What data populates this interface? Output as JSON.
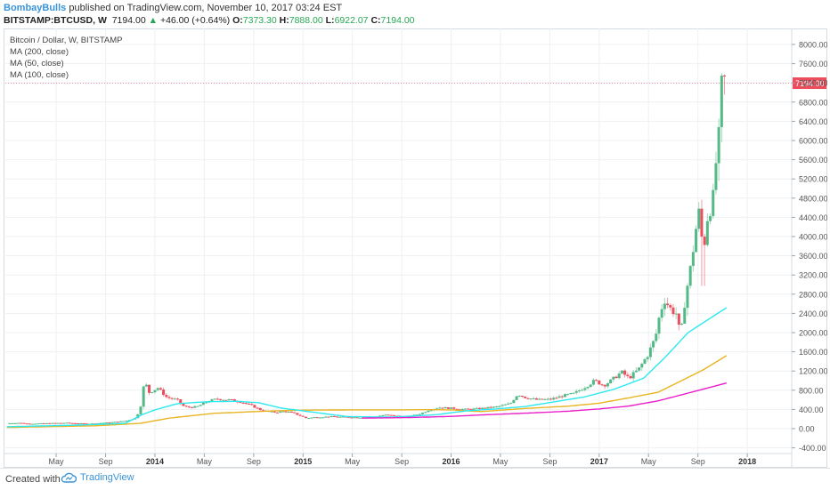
{
  "header": {
    "author": "BombayBulls",
    "published_text": "published on TradingView.com, November 10, 2017 03:24 EST",
    "symbol": "BITSTAMP:BTCUSD, W",
    "last": "7194.00",
    "change_arrow": "▲",
    "change": "+46.00 (+0.64%)",
    "o_label": "O:",
    "o_value": "7373.30",
    "h_label": "H:",
    "h_value": "7888.00",
    "l_label": "L:",
    "l_value": "6922.07",
    "c_label": "C:",
    "c_value": "7194.00"
  },
  "footer": {
    "created_text": "Created with",
    "brand": "TradingView"
  },
  "chart_data": {
    "type": "candlestick",
    "legend": [
      "Bitcoin / Dollar, W, BITSTAMP",
      "MA (200, close)",
      "MA (50, close)",
      "MA (100, close)"
    ],
    "price_label": "7194.00",
    "price_line_value": 7194,
    "ylim": [
      -400,
      8200
    ],
    "y_ticks": [
      "8000.00",
      "7600.00",
      "7200.00",
      "6800.00",
      "6400.00",
      "6000.00",
      "5600.00",
      "5200.00",
      "4800.00",
      "4400.00",
      "4000.00",
      "3600.00",
      "3200.00",
      "2800.00",
      "2400.00",
      "2000.00",
      "1600.00",
      "1200.00",
      "800.00",
      "400.00",
      "0.00",
      "-400.00"
    ],
    "x_labels": [
      {
        "t": 2013.333,
        "label": "May"
      },
      {
        "t": 2013.667,
        "label": "Sep"
      },
      {
        "t": 2014.0,
        "label": "2014"
      },
      {
        "t": 2014.333,
        "label": "May"
      },
      {
        "t": 2014.667,
        "label": "Sep"
      },
      {
        "t": 2015.0,
        "label": "2015"
      },
      {
        "t": 2015.333,
        "label": "May"
      },
      {
        "t": 2015.667,
        "label": "Sep"
      },
      {
        "t": 2016.0,
        "label": "2016"
      },
      {
        "t": 2016.333,
        "label": "May"
      },
      {
        "t": 2016.667,
        "label": "Sep"
      },
      {
        "t": 2017.0,
        "label": "2017"
      },
      {
        "t": 2017.333,
        "label": "May"
      },
      {
        "t": 2017.667,
        "label": "Sep"
      },
      {
        "t": 2018.0,
        "label": "2018"
      }
    ],
    "xlim": [
      2012.99,
      2018.3
    ],
    "colors": {
      "up": "#53b987",
      "down": "#eb4d5c",
      "ma200": "#e91ec9",
      "ma50": "#2ee8f0",
      "ma100": "#e8b422",
      "price_line": "#eb4d5c",
      "grid": "#eef0f3"
    },
    "price_anchors": [
      [
        2013.0,
        110
      ],
      [
        2013.08,
        120
      ],
      [
        2013.15,
        100
      ],
      [
        2013.25,
        110
      ],
      [
        2013.4,
        120
      ],
      [
        2013.55,
        100
      ],
      [
        2013.7,
        130
      ],
      [
        2013.8,
        160
      ],
      [
        2013.87,
        220
      ],
      [
        2013.9,
        400
      ],
      [
        2013.93,
        1000
      ],
      [
        2013.96,
        750
      ],
      [
        2014.02,
        850
      ],
      [
        2014.08,
        650
      ],
      [
        2014.15,
        600
      ],
      [
        2014.2,
        450
      ],
      [
        2014.28,
        450
      ],
      [
        2014.35,
        560
      ],
      [
        2014.42,
        620
      ],
      [
        2014.5,
        600
      ],
      [
        2014.58,
        560
      ],
      [
        2014.66,
        470
      ],
      [
        2014.72,
        380
      ],
      [
        2014.8,
        340
      ],
      [
        2014.88,
        360
      ],
      [
        2014.94,
        320
      ],
      [
        2015.02,
        220
      ],
      [
        2015.1,
        240
      ],
      [
        2015.2,
        250
      ],
      [
        2015.33,
        235
      ],
      [
        2015.45,
        230
      ],
      [
        2015.55,
        285
      ],
      [
        2015.62,
        270
      ],
      [
        2015.7,
        235
      ],
      [
        2015.8,
        320
      ],
      [
        2015.85,
        390
      ],
      [
        2015.92,
        440
      ],
      [
        2016.02,
        420
      ],
      [
        2016.1,
        400
      ],
      [
        2016.2,
        420
      ],
      [
        2016.3,
        450
      ],
      [
        2016.4,
        520
      ],
      [
        2016.45,
        720
      ],
      [
        2016.5,
        650
      ],
      [
        2016.58,
        600
      ],
      [
        2016.67,
        610
      ],
      [
        2016.75,
        680
      ],
      [
        2016.83,
        730
      ],
      [
        2016.92,
        900
      ],
      [
        2016.97,
        1000
      ],
      [
        2017.03,
        900
      ],
      [
        2017.08,
        1000
      ],
      [
        2017.15,
        1180
      ],
      [
        2017.2,
        1050
      ],
      [
        2017.27,
        1250
      ],
      [
        2017.33,
        1550
      ],
      [
        2017.38,
        1900
      ],
      [
        2017.41,
        2400
      ],
      [
        2017.44,
        2700
      ],
      [
        2017.48,
        2500
      ],
      [
        2017.52,
        2400
      ],
      [
        2017.55,
        1900
      ],
      [
        2017.58,
        2700
      ],
      [
        2017.62,
        3400
      ],
      [
        2017.65,
        4100
      ],
      [
        2017.68,
        4600
      ],
      [
        2017.7,
        3600
      ],
      [
        2017.73,
        4400
      ],
      [
        2017.77,
        4800
      ],
      [
        2017.79,
        5600
      ],
      [
        2017.81,
        6100
      ],
      [
        2017.83,
        7300
      ],
      [
        2017.86,
        7194
      ]
    ],
    "ma50_anchors": [
      [
        2013.0,
        40
      ],
      [
        2013.5,
        75
      ],
      [
        2013.8,
        110
      ],
      [
        2013.92,
        300
      ],
      [
        2014.0,
        390
      ],
      [
        2014.15,
        520
      ],
      [
        2014.35,
        560
      ],
      [
        2014.55,
        570
      ],
      [
        2014.7,
        540
      ],
      [
        2014.85,
        430
      ],
      [
        2015.0,
        370
      ],
      [
        2015.3,
        250
      ],
      [
        2015.6,
        240
      ],
      [
        2015.9,
        290
      ],
      [
        2016.1,
        370
      ],
      [
        2016.3,
        410
      ],
      [
        2016.5,
        460
      ],
      [
        2016.7,
        560
      ],
      [
        2016.9,
        660
      ],
      [
        2017.1,
        820
      ],
      [
        2017.3,
        1050
      ],
      [
        2017.45,
        1500
      ],
      [
        2017.6,
        2000
      ],
      [
        2017.75,
        2300
      ],
      [
        2017.86,
        2520
      ]
    ],
    "ma100_anchors": [
      [
        2013.0,
        25
      ],
      [
        2013.6,
        60
      ],
      [
        2013.9,
        110
      ],
      [
        2014.1,
        220
      ],
      [
        2014.4,
        320
      ],
      [
        2014.8,
        370
      ],
      [
        2015.0,
        385
      ],
      [
        2015.3,
        390
      ],
      [
        2015.6,
        390
      ],
      [
        2015.85,
        395
      ],
      [
        2016.0,
        390
      ],
      [
        2016.2,
        355
      ],
      [
        2016.5,
        420
      ],
      [
        2016.8,
        470
      ],
      [
        2017.0,
        530
      ],
      [
        2017.2,
        640
      ],
      [
        2017.4,
        760
      ],
      [
        2017.55,
        990
      ],
      [
        2017.7,
        1220
      ],
      [
        2017.86,
        1520
      ]
    ],
    "ma200_anchors": [
      [
        2015.4,
        220
      ],
      [
        2015.7,
        230
      ],
      [
        2016.0,
        255
      ],
      [
        2016.2,
        285
      ],
      [
        2016.4,
        310
      ],
      [
        2016.6,
        335
      ],
      [
        2016.8,
        365
      ],
      [
        2017.0,
        410
      ],
      [
        2017.2,
        470
      ],
      [
        2017.4,
        580
      ],
      [
        2017.6,
        740
      ],
      [
        2017.86,
        950
      ]
    ]
  }
}
